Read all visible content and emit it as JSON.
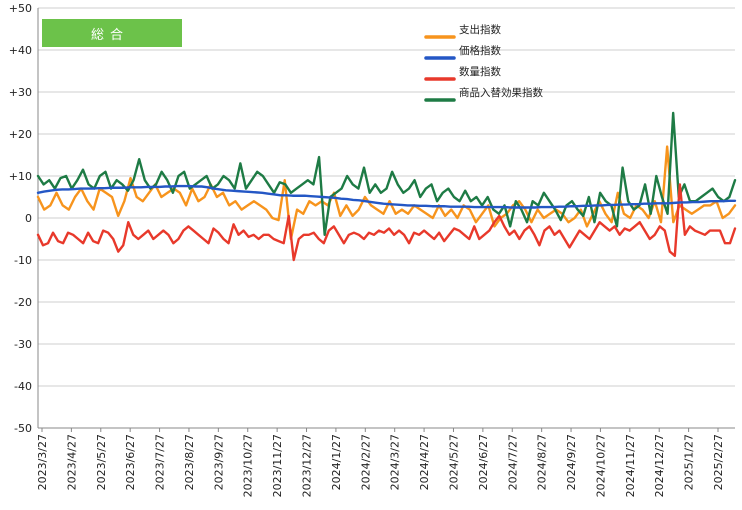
{
  "badge": "総合",
  "colors": {
    "badge_bg": "#6cc24a",
    "grid": "#cfcfcf",
    "axis": "#888888"
  },
  "chart_data": {
    "type": "line",
    "ylim": [
      -50,
      50
    ],
    "y_ticks": [
      50,
      40,
      30,
      20,
      10,
      0,
      -10,
      -20,
      -30,
      -40,
      -50
    ],
    "y_tick_labels": [
      "+50",
      "+40",
      "+30",
      "+20",
      "+10",
      "0",
      "-10",
      "-20",
      "-30",
      "-40",
      "-50"
    ],
    "x_tick_labels": [
      "2023/3/27",
      "2023/4/27",
      "2023/5/27",
      "2023/6/27",
      "2023/7/27",
      "2023/8/27",
      "2023/9/27",
      "2023/10/27",
      "2023/11/27",
      "2023/12/27",
      "2024/1/27",
      "2024/2/27",
      "2024/3/27",
      "2024/4/27",
      "2024/5/27",
      "2024/6/27",
      "2024/7/27",
      "2024/8/27",
      "2024/9/27",
      "2024/10/27",
      "2024/11/27",
      "2024/12/27",
      "2025/1/27",
      "2025/2/27"
    ],
    "legend_position": "top-right",
    "series": [
      {
        "name": "支出指数",
        "color": "#f7941d",
        "values": [
          5,
          2,
          3,
          6,
          3,
          2,
          5,
          7,
          4,
          2,
          7,
          6,
          5,
          0.5,
          4,
          9.5,
          5,
          4,
          6,
          8,
          5,
          6,
          7,
          6,
          3,
          7,
          4,
          5,
          8,
          5,
          6,
          3,
          4,
          2,
          3,
          4,
          3,
          2,
          0,
          -0.5,
          9,
          -5,
          2,
          1,
          4,
          3,
          4,
          3,
          6,
          0.5,
          3,
          0.5,
          2,
          5,
          3,
          2,
          1,
          4,
          1,
          2,
          1,
          3,
          2,
          1,
          0,
          3,
          0.5,
          2,
          0,
          3,
          2,
          -1,
          1,
          3,
          -2,
          0,
          1,
          3,
          4,
          2,
          -1,
          2,
          0,
          1,
          2,
          1,
          -1,
          0,
          2,
          -2,
          1,
          4,
          1,
          -1,
          6,
          1,
          0,
          3,
          2,
          0,
          4,
          -1,
          17,
          -1,
          3,
          2,
          1,
          2,
          3,
          3,
          4,
          0,
          1,
          3
        ]
      },
      {
        "name": "価格指数",
        "color": "#2457c5",
        "values": [
          6,
          6.3,
          6.5,
          6.7,
          6.8,
          6.8,
          6.9,
          7,
          7,
          7,
          7.1,
          7.1,
          7.2,
          7.2,
          7.2,
          7.3,
          7.3,
          7.3,
          7.4,
          7.4,
          7.4,
          7.5,
          7.5,
          7.6,
          7.6,
          7.6,
          7.5,
          7.5,
          7.3,
          7,
          6.8,
          6.6,
          6.5,
          6.4,
          6.3,
          6.2,
          6.1,
          6,
          5.8,
          5.6,
          5.4,
          5.4,
          5.3,
          5.3,
          5.3,
          5.2,
          5.1,
          5,
          4.9,
          4.8,
          4.6,
          4.5,
          4.3,
          4.2,
          4,
          3.8,
          3.6,
          3.4,
          3.3,
          3.2,
          3.1,
          3,
          3,
          2.9,
          2.9,
          2.8,
          2.8,
          2.8,
          2.7,
          2.7,
          2.7,
          2.7,
          2.6,
          2.6,
          2.6,
          2.6,
          2.6,
          2.6,
          2.5,
          2.5,
          2.5,
          2.5,
          2.5,
          2.6,
          2.6,
          2.6,
          2.7,
          2.7,
          2.8,
          2.8,
          2.9,
          2.9,
          3,
          3,
          3.1,
          3.1,
          3.2,
          3.2,
          3.3,
          3.3,
          3.4,
          3.4,
          3.5,
          3.5,
          3.5,
          3.6,
          3.7,
          3.7,
          3.8,
          3.8,
          3.9,
          4,
          4,
          4,
          4.1,
          4.1
        ]
      },
      {
        "name": "数量指数",
        "color": "#e8392b",
        "values": [
          -4,
          -6.5,
          -6,
          -3.5,
          -5.5,
          -6,
          -3.5,
          -4,
          -5,
          -6,
          -3.5,
          -5.5,
          -6,
          -3,
          -3.5,
          -5,
          -8,
          -6.5,
          -1,
          -4,
          -5,
          -4,
          -3,
          -5,
          -4,
          -3,
          -4,
          -6,
          -5,
          -3,
          -2,
          -3,
          -4,
          -5,
          -6,
          -2.5,
          -3.5,
          -5,
          -6,
          -1.5,
          -4,
          -3,
          -4.5,
          -4,
          -5,
          -4,
          -4,
          -5,
          -5.5,
          -6,
          0.5,
          -10,
          -5,
          -4,
          -4,
          -3.5,
          -5,
          -6,
          -3,
          -2,
          -4,
          -6,
          -4,
          -3.5,
          -4,
          -5,
          -3.5,
          -4,
          -3,
          -3.5,
          -2.5,
          -4,
          -3,
          -4,
          -6,
          -3.5,
          -4,
          -3,
          -4,
          -5,
          -3.5,
          -5.5,
          -4,
          -2.5,
          -3,
          -4,
          -5,
          -2,
          -5,
          -4,
          -3,
          -1,
          0.5,
          -2,
          -4,
          -3,
          -5,
          -3,
          -2,
          -4,
          -6.5,
          -3,
          -2,
          -4,
          -3,
          -5,
          -7,
          -5,
          -3,
          -4,
          -5,
          -3,
          -1,
          -2,
          -3,
          -2,
          -4,
          -2.5,
          -3,
          -2,
          -1,
          -3,
          -5,
          -4,
          -2,
          -3,
          -8,
          -9,
          8,
          -4,
          -2,
          -3,
          -3.5,
          -4,
          -3,
          -3,
          -3,
          -6,
          -6,
          -2.5
        ]
      },
      {
        "name": "商品入替効果指数",
        "color": "#1e7b45",
        "values": [
          10,
          8,
          9,
          7,
          9.5,
          10,
          7,
          9,
          11.5,
          8,
          7,
          10,
          11,
          7,
          9,
          8,
          6.5,
          9,
          14,
          9,
          7,
          8,
          11,
          9,
          6,
          10,
          11,
          7,
          8,
          9,
          10,
          7,
          8,
          10,
          9,
          7,
          13,
          7,
          9,
          11,
          10,
          8,
          6,
          8.5,
          8,
          6,
          7,
          8,
          9,
          8,
          14.5,
          -4,
          5,
          6,
          7,
          10,
          8,
          7,
          12,
          6,
          8,
          6,
          7,
          11,
          8,
          6,
          7,
          9,
          5,
          7,
          8,
          4,
          6,
          7,
          5,
          4,
          6.5,
          4,
          5,
          3,
          5,
          2,
          1,
          3,
          -2,
          4,
          2,
          -1,
          4,
          3,
          6,
          4,
          2,
          -0.5,
          3,
          4,
          2,
          0.5,
          5,
          -1,
          6,
          4,
          3,
          -2,
          12,
          4,
          2,
          3,
          8,
          1,
          10,
          5,
          1,
          25,
          5,
          8,
          4,
          4,
          5,
          6,
          7,
          5,
          4,
          5,
          9
        ]
      }
    ]
  }
}
